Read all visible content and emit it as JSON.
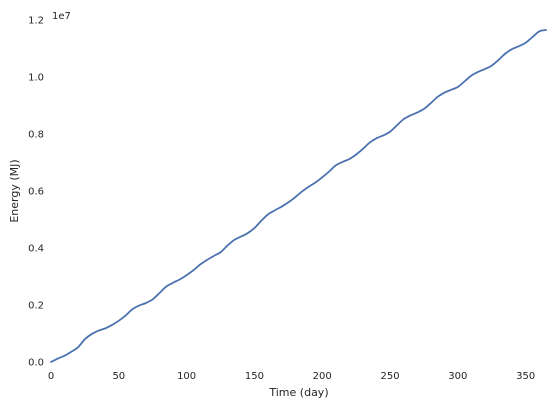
{
  "chart_data": {
    "type": "line",
    "title": "",
    "xlabel": "Time (day)",
    "ylabel": "Energy (MJ)",
    "y_offset_label": "1e7",
    "xlim": [
      0,
      365
    ],
    "ylim": [
      0,
      1.2
    ],
    "x_ticks": [
      0,
      50,
      100,
      150,
      200,
      250,
      300,
      350
    ],
    "y_ticks": [
      "0.0",
      "0.2",
      "0.4",
      "0.6",
      "0.8",
      "1.0",
      "1.2"
    ],
    "grid": false,
    "line_color": "#4c72b0",
    "series": [
      {
        "x": [
          0,
          5,
          10,
          15,
          20,
          25,
          30,
          35,
          40,
          45,
          50,
          55,
          60,
          65,
          70,
          75,
          80,
          85,
          90,
          95,
          100,
          105,
          110,
          115,
          120,
          125,
          130,
          135,
          140,
          145,
          150,
          155,
          160,
          165,
          170,
          175,
          180,
          185,
          190,
          195,
          200,
          205,
          210,
          215,
          220,
          225,
          230,
          235,
          240,
          245,
          250,
          255,
          260,
          265,
          270,
          275,
          280,
          285,
          290,
          295,
          300,
          305,
          310,
          315,
          320,
          325,
          330,
          335,
          340,
          345,
          350,
          355,
          360,
          365
        ],
        "values": [
          0.0,
          0.012,
          0.022,
          0.036,
          0.052,
          0.08,
          0.098,
          0.11,
          0.118,
          0.13,
          0.145,
          0.163,
          0.185,
          0.198,
          0.207,
          0.22,
          0.242,
          0.265,
          0.278,
          0.29,
          0.305,
          0.322,
          0.342,
          0.358,
          0.372,
          0.385,
          0.408,
          0.428,
          0.44,
          0.452,
          0.47,
          0.495,
          0.518,
          0.532,
          0.545,
          0.56,
          0.578,
          0.598,
          0.615,
          0.63,
          0.648,
          0.668,
          0.69,
          0.702,
          0.712,
          0.728,
          0.748,
          0.77,
          0.785,
          0.795,
          0.808,
          0.83,
          0.852,
          0.865,
          0.875,
          0.888,
          0.908,
          0.93,
          0.945,
          0.955,
          0.965,
          0.985,
          1.005,
          1.018,
          1.028,
          1.04,
          1.06,
          1.082,
          1.098,
          1.108,
          1.12,
          1.14,
          1.16,
          1.165
        ]
      }
    ]
  }
}
